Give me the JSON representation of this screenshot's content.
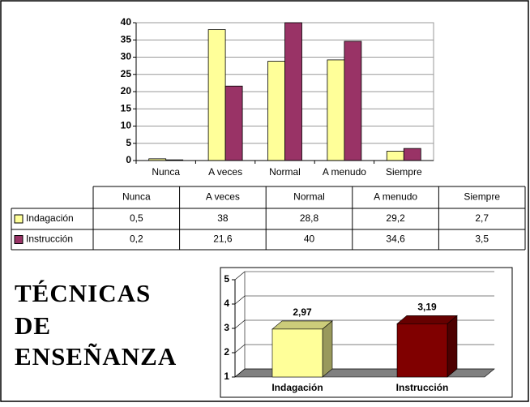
{
  "heading": [
    "TÉCNICAS",
    "DE",
    "ENSEÑANZA"
  ],
  "chart_data": [
    {
      "type": "bar",
      "categories": [
        "Nunca",
        "A veces",
        "Normal",
        "A menudo",
        "Siempre"
      ],
      "series": [
        {
          "name": "Indagación",
          "color": "#ffff99",
          "values": [
            0.5,
            38,
            28.8,
            29.2,
            2.7
          ],
          "value_labels": [
            "0,5",
            "38",
            "28,8",
            "29,2",
            "2,7"
          ]
        },
        {
          "name": "Instrucción",
          "color": "#993366",
          "values": [
            0.2,
            21.6,
            40,
            34.6,
            3.5
          ],
          "value_labels": [
            "0,2",
            "21,6",
            "40",
            "34,6",
            "3,5"
          ]
        }
      ],
      "ylim": [
        0,
        40
      ],
      "yticks": [
        0,
        5,
        10,
        15,
        20,
        25,
        30,
        35,
        40
      ],
      "grid": true
    },
    {
      "type": "bar3d",
      "categories": [
        "Indagación",
        "Instrucción"
      ],
      "values": [
        2.97,
        3.19
      ],
      "value_labels": [
        "2,97",
        "3,19"
      ],
      "colors": [
        "#ffff99",
        "#800000"
      ],
      "ylim": [
        1,
        5
      ],
      "yticks": [
        1,
        2,
        3,
        4,
        5
      ],
      "grid": true
    }
  ]
}
